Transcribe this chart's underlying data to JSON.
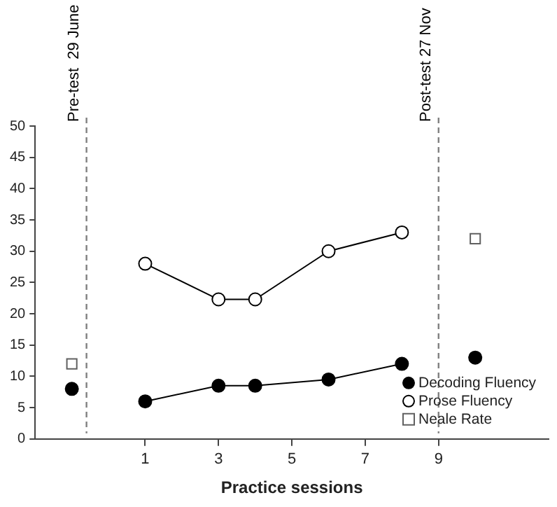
{
  "chart_data": {
    "type": "line",
    "xlabel": "Practice sessions",
    "xlim": [
      -2,
      12
    ],
    "xticks": [
      1,
      3,
      5,
      7,
      9
    ],
    "ylim": [
      0,
      50
    ],
    "yticks": [
      0,
      5,
      10,
      15,
      20,
      25,
      30,
      35,
      40,
      45,
      50
    ],
    "grid": false,
    "legend": "bottom right",
    "series": [
      {
        "name": "Decoding Fluency",
        "marker": "circle",
        "color": "#000000",
        "x": [
          -1,
          0,
          1,
          3,
          4,
          6,
          8,
          9,
          10
        ],
        "values": [
          8,
          null,
          6,
          8.5,
          8.5,
          9.5,
          12,
          null,
          13
        ]
      },
      {
        "name": "Prose Fluency",
        "marker": "circle",
        "color": "#ffffff",
        "x": [
          1,
          3,
          4,
          6,
          8
        ],
        "values": [
          28,
          22.3,
          22.3,
          30,
          33
        ]
      },
      {
        "name": "Neale Rate",
        "type": "scatter",
        "marker": "square",
        "color": "#ffffff",
        "x": [
          -1,
          10
        ],
        "values": [
          12,
          32
        ]
      }
    ],
    "ref_lines": [
      {
        "axis": "x",
        "value": -0.6,
        "label": "Pre-test  29 June",
        "color": "#808080",
        "line_style": "dashed"
      },
      {
        "axis": "x",
        "value": 9,
        "label": "Post-test 27 Nov",
        "color": "#808080",
        "line_style": "dashed"
      }
    ]
  }
}
